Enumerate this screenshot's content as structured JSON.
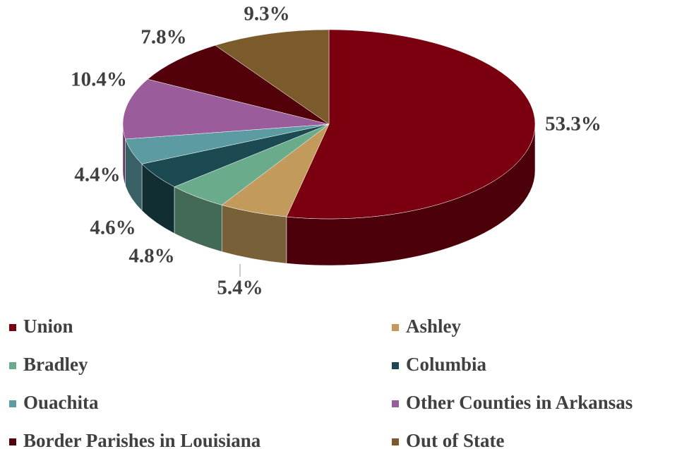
{
  "chart_data": {
    "type": "pie3d",
    "categories": [
      "Union",
      "Ashley",
      "Bradley",
      "Columbia",
      "Ouachita",
      "Other Counties in Arkansas",
      "Border Parishes in Louisiana",
      "Out of State"
    ],
    "values": [
      53.3,
      5.4,
      4.8,
      4.6,
      4.4,
      10.4,
      7.8,
      9.3
    ],
    "value_labels": [
      "53.3%",
      "5.4%",
      "4.8%",
      "4.6%",
      "4.4%",
      "10.4%",
      "7.8%",
      "9.3%"
    ],
    "colors": [
      "#7a0010",
      "#c29b5c",
      "#6aab8c",
      "#1b4a52",
      "#5c9ba2",
      "#9b5c9c",
      "#52000a",
      "#7b5b2c"
    ],
    "legend": "bottom"
  }
}
